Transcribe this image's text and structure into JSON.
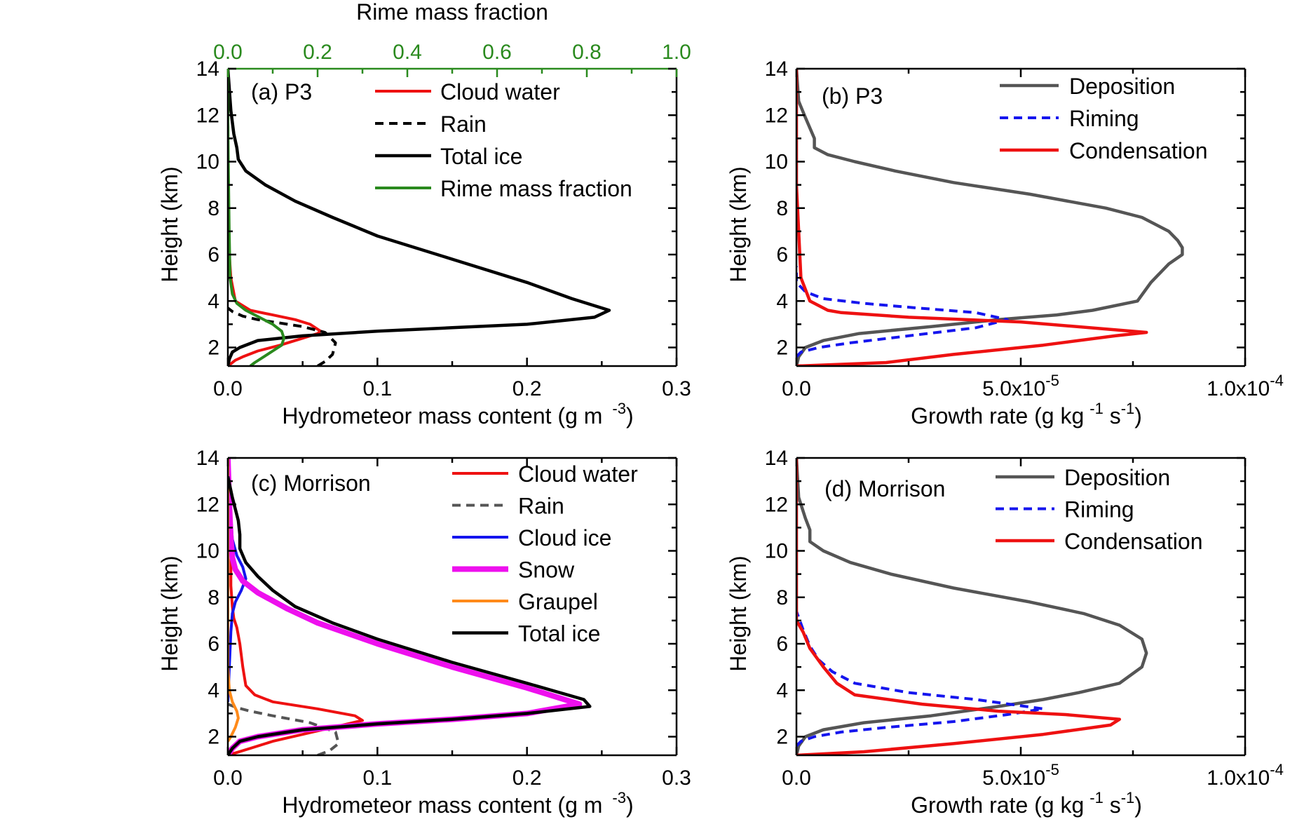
{
  "chart_data": [
    {
      "id": "a",
      "type": "line",
      "panel_label": "(a) P3",
      "xlabel": "Hydrometeor mass content (g m",
      "xlabel_sup": "-3",
      "xlabel_end": ")",
      "ylabel": "Height (km)",
      "xlim": [
        0,
        0.3
      ],
      "ylim": [
        1.2,
        14
      ],
      "xticks": [
        0.0,
        0.1,
        0.2,
        0.3
      ],
      "xtick_labels": [
        "0.0",
        "0.1",
        "0.2",
        "0.3"
      ],
      "yticks": [
        2,
        4,
        6,
        8,
        10,
        12,
        14
      ],
      "ytick_labels": [
        "2",
        "4",
        "6",
        "8",
        "10",
        "12",
        "14"
      ],
      "top_axis": {
        "label": "Rime mass fraction",
        "lim": [
          0,
          1.0
        ],
        "ticks": [
          0.0,
          0.2,
          0.4,
          0.6,
          0.8,
          1.0
        ],
        "tick_labels": [
          "0.0",
          "0.2",
          "0.4",
          "0.6",
          "0.8",
          "1.0"
        ],
        "color": "#2a8a1e"
      },
      "legend_position": "top-right",
      "series": [
        {
          "name": "Cloud water",
          "color": "#ee1111",
          "dash": "",
          "width": 4,
          "x": [
            0.0,
            0.002,
            0.005,
            0.01,
            0.02,
            0.035,
            0.05,
            0.06,
            0.062,
            0.055,
            0.045,
            0.03,
            0.015,
            0.005,
            0.002,
            0.001,
            0.0
          ],
          "y": [
            1.2,
            1.3,
            1.45,
            1.6,
            1.85,
            2.1,
            2.4,
            2.6,
            2.7,
            3.0,
            3.2,
            3.4,
            3.6,
            4.0,
            5.0,
            6.0,
            7.0
          ]
        },
        {
          "name": "Rain",
          "color": "#000000",
          "dash": "12,8",
          "width": 4,
          "x": [
            0.06,
            0.065,
            0.07,
            0.072,
            0.065,
            0.05,
            0.035,
            0.02,
            0.01,
            0.003,
            0.0
          ],
          "y": [
            1.2,
            1.4,
            1.7,
            2.2,
            2.65,
            2.9,
            3.05,
            3.2,
            3.35,
            3.55,
            3.7
          ]
        },
        {
          "name": "Total ice",
          "color": "#000000",
          "dash": "",
          "width": 4.5,
          "x": [
            0.0,
            0.001,
            0.003,
            0.008,
            0.02,
            0.05,
            0.1,
            0.15,
            0.2,
            0.245,
            0.255,
            0.23,
            0.2,
            0.15,
            0.1,
            0.07,
            0.045,
            0.025,
            0.012,
            0.007,
            0.006,
            0.004,
            0.002,
            0.0
          ],
          "y": [
            1.2,
            1.5,
            1.8,
            2.0,
            2.3,
            2.5,
            2.7,
            2.85,
            3.0,
            3.3,
            3.6,
            4.1,
            4.8,
            5.8,
            6.8,
            7.6,
            8.3,
            9.0,
            9.6,
            10.1,
            10.6,
            11.2,
            12.2,
            14.0
          ]
        },
        {
          "name": "Rime mass fraction",
          "color": "#2a8a1e",
          "dash": "",
          "width": 4,
          "axis": "top",
          "x": [
            0.05,
            0.06,
            0.08,
            0.1,
            0.12,
            0.125,
            0.12,
            0.1,
            0.07,
            0.04,
            0.02,
            0.01,
            0.005,
            0.003,
            0.001,
            0.0,
            0.0
          ],
          "y": [
            1.2,
            1.35,
            1.6,
            1.85,
            2.1,
            2.4,
            2.7,
            3.0,
            3.3,
            3.6,
            3.9,
            4.3,
            5.0,
            7.0,
            10.0,
            12.0,
            14.0
          ]
        }
      ]
    },
    {
      "id": "b",
      "type": "line",
      "panel_label": "(b) P3",
      "xlabel": "Growth rate (g kg",
      "xlabel_sup1": "-1",
      "xlabel_mid": " s",
      "xlabel_sup2": "-1",
      "xlabel_end": ")",
      "ylabel": "Height (km)",
      "xlim": [
        0,
        0.0001
      ],
      "ylim": [
        1.2,
        14
      ],
      "xticks": [
        0.0,
        5e-05,
        0.0001
      ],
      "xtick_labels": [
        "0.0",
        "5.0x10",
        "1.0x10"
      ],
      "xtick_sups": [
        "",
        "-5",
        "-4"
      ],
      "yticks": [
        2,
        4,
        6,
        8,
        10,
        12,
        14
      ],
      "ytick_labels": [
        "2",
        "4",
        "6",
        "8",
        "10",
        "12",
        "14"
      ],
      "legend_position": "top-right",
      "series": [
        {
          "name": "Deposition",
          "color": "#555555",
          "dash": "",
          "width": 4.5,
          "x": [
            0.0,
            5e-07,
            2e-06,
            6e-06,
            1.4e-05,
            3e-05,
            4.5e-05,
            5.8e-05,
            6.6e-05,
            7.6e-05,
            7.9e-05,
            8.3e-05,
            8.6e-05,
            8.6e-05,
            8.5e-05,
            8.3e-05,
            7.7e-05,
            6.9e-05,
            5.2e-05,
            3.5e-05,
            2.2e-05,
            1.3e-05,
            7e-06,
            4e-06,
            4e-06,
            2e-06,
            5e-07,
            0.0
          ],
          "y": [
            1.2,
            1.6,
            2.0,
            2.3,
            2.6,
            2.9,
            3.2,
            3.4,
            3.6,
            4.0,
            4.8,
            5.6,
            6.0,
            6.3,
            6.6,
            7.0,
            7.6,
            8.0,
            8.6,
            9.1,
            9.6,
            10.0,
            10.3,
            10.6,
            11.0,
            11.9,
            12.6,
            14.0
          ]
        },
        {
          "name": "Riming",
          "color": "#1515ee",
          "dash": "12,8",
          "width": 4,
          "x": [
            0.0,
            1e-06,
            5e-06,
            1.2e-05,
            2.5e-05,
            4e-05,
            4.7e-05,
            4e-05,
            2.7e-05,
            1.5e-05,
            6e-06,
            2e-06,
            0.0,
            0.0
          ],
          "y": [
            1.6,
            1.8,
            2.0,
            2.2,
            2.5,
            2.85,
            3.2,
            3.5,
            3.7,
            3.9,
            4.1,
            4.4,
            4.8,
            5.5
          ]
        },
        {
          "name": "Condensation",
          "color": "#ee1111",
          "dash": "",
          "width": 4.5,
          "x": [
            0.0,
            2e-05,
            3.5e-05,
            5.5e-05,
            7.1e-05,
            7.8e-05,
            5e-05,
            2.5e-05,
            1e-05,
            7e-06,
            3e-06,
            1e-06,
            5e-07,
            0.0,
            0.0,
            0.0
          ],
          "y": [
            1.2,
            1.35,
            1.7,
            2.1,
            2.5,
            2.65,
            3.1,
            3.3,
            3.5,
            3.6,
            4.0,
            5.0,
            7.0,
            9.0,
            12.0,
            14.0
          ]
        }
      ]
    },
    {
      "id": "c",
      "type": "line",
      "panel_label": "(c) Morrison",
      "xlabel": "Hydrometeor mass content (g m",
      "xlabel_sup": "-3",
      "xlabel_end": ")",
      "ylabel": "Height (km)",
      "xlim": [
        0,
        0.3
      ],
      "ylim": [
        1.2,
        14
      ],
      "xticks": [
        0.0,
        0.1,
        0.2,
        0.3
      ],
      "xtick_labels": [
        "0.0",
        "0.1",
        "0.2",
        "0.3"
      ],
      "yticks": [
        2,
        4,
        6,
        8,
        10,
        12,
        14
      ],
      "ytick_labels": [
        "2",
        "4",
        "6",
        "8",
        "10",
        "12",
        "14"
      ],
      "legend_position": "top-right",
      "series": [
        {
          "name": "Cloud water",
          "color": "#ee1111",
          "dash": "",
          "width": 4,
          "x": [
            0.0,
            0.005,
            0.015,
            0.03,
            0.05,
            0.07,
            0.09,
            0.085,
            0.06,
            0.03,
            0.018,
            0.012,
            0.01,
            0.008,
            0.006,
            0.004,
            0.003,
            0.002,
            0.002,
            0.001,
            0.0
          ],
          "y": [
            1.2,
            1.3,
            1.5,
            1.8,
            2.1,
            2.4,
            2.7,
            2.9,
            3.2,
            3.5,
            3.8,
            4.2,
            5.0,
            6.0,
            6.7,
            7.1,
            7.6,
            8.5,
            10.0,
            12.0,
            14.0
          ]
        },
        {
          "name": "Rain",
          "color": "#555555",
          "dash": "12,8",
          "width": 4,
          "x": [
            0.06,
            0.068,
            0.074,
            0.072,
            0.055,
            0.03,
            0.015,
            0.006,
            0.0
          ],
          "y": [
            1.2,
            1.4,
            1.7,
            2.2,
            2.6,
            2.9,
            3.1,
            3.25,
            3.4
          ]
        },
        {
          "name": "Cloud ice",
          "color": "#1515ee",
          "dash": "",
          "width": 4,
          "x": [
            0.0,
            0.001,
            0.002,
            0.003,
            0.005,
            0.009,
            0.012,
            0.01,
            0.006,
            0.003,
            0.002,
            0.001,
            0.0
          ],
          "y": [
            3.5,
            5.0,
            6.5,
            7.3,
            7.8,
            8.3,
            8.8,
            9.3,
            9.8,
            10.5,
            11.5,
            12.5,
            14.0
          ]
        },
        {
          "name": "Snow",
          "color": "#ee10ee",
          "dash": "",
          "width": 8,
          "x": [
            0.0,
            0.003,
            0.008,
            0.02,
            0.05,
            0.1,
            0.15,
            0.2,
            0.235,
            0.2,
            0.15,
            0.1,
            0.06,
            0.04,
            0.02,
            0.01,
            0.005,
            0.003,
            0.002,
            0.001,
            0.0
          ],
          "y": [
            1.2,
            1.5,
            1.8,
            2.0,
            2.3,
            2.55,
            2.75,
            3.0,
            3.4,
            4.1,
            5.0,
            6.0,
            6.9,
            7.5,
            8.2,
            8.7,
            9.2,
            9.7,
            10.5,
            12.0,
            14.0
          ]
        },
        {
          "name": "Graupel",
          "color": "#ff8a1a",
          "dash": "",
          "width": 4,
          "x": [
            0.0,
            0.002,
            0.005,
            0.007,
            0.006,
            0.003,
            0.001,
            0.0,
            0.0
          ],
          "y": [
            1.8,
            2.0,
            2.4,
            2.8,
            3.1,
            3.5,
            4.0,
            5.0,
            14.0
          ]
        },
        {
          "name": "Total ice",
          "color": "#000000",
          "dash": "",
          "width": 4.5,
          "x": [
            0.0,
            0.003,
            0.008,
            0.02,
            0.05,
            0.1,
            0.15,
            0.2,
            0.242,
            0.238,
            0.2,
            0.15,
            0.1,
            0.07,
            0.045,
            0.03,
            0.02,
            0.012,
            0.008,
            0.008,
            0.007,
            0.003,
            0.0
          ],
          "y": [
            1.2,
            1.5,
            1.8,
            2.0,
            2.3,
            2.55,
            2.75,
            3.0,
            3.3,
            3.6,
            4.3,
            5.2,
            6.2,
            6.9,
            7.6,
            8.3,
            8.9,
            9.5,
            10.1,
            10.7,
            11.3,
            12.3,
            13.2
          ]
        }
      ]
    },
    {
      "id": "d",
      "type": "line",
      "panel_label": "(d) Morrison",
      "xlabel": "Growth rate (g kg",
      "xlabel_sup1": "-1",
      "xlabel_mid": " s",
      "xlabel_sup2": "-1",
      "xlabel_end": ")",
      "ylabel": "Height (km)",
      "xlim": [
        0,
        0.0001
      ],
      "ylim": [
        1.2,
        14
      ],
      "xticks": [
        0.0,
        5e-05,
        0.0001
      ],
      "xtick_labels": [
        "0.0",
        "5.0x10",
        "1.0x10"
      ],
      "xtick_sups": [
        "",
        "-5",
        "-4"
      ],
      "yticks": [
        2,
        4,
        6,
        8,
        10,
        12,
        14
      ],
      "ytick_labels": [
        "2",
        "4",
        "6",
        "8",
        "10",
        "12",
        "14"
      ],
      "legend_position": "top-right",
      "series": [
        {
          "name": "Deposition",
          "color": "#555555",
          "dash": "",
          "width": 4.5,
          "x": [
            0.0,
            5e-07,
            2e-06,
            6e-06,
            1.5e-05,
            3e-05,
            4.5e-05,
            5.5e-05,
            6.3e-05,
            7.2e-05,
            7.7e-05,
            7.8e-05,
            7.7e-05,
            7.2e-05,
            6.4e-05,
            5.2e-05,
            3.5e-05,
            2.1e-05,
            1.2e-05,
            6e-06,
            3e-06,
            3e-06,
            2e-06,
            5e-07,
            0.0
          ],
          "y": [
            1.2,
            1.6,
            2.0,
            2.3,
            2.6,
            2.9,
            3.3,
            3.6,
            3.9,
            4.3,
            5.0,
            5.6,
            6.2,
            6.8,
            7.3,
            7.8,
            8.4,
            9.0,
            9.5,
            10.0,
            10.4,
            10.9,
            11.4,
            12.3,
            14.0
          ]
        },
        {
          "name": "Riming",
          "color": "#1515ee",
          "dash": "12,8",
          "width": 4,
          "x": [
            0.0,
            1e-06,
            4e-06,
            1e-05,
            2e-05,
            3.5e-05,
            4.7e-05,
            5.5e-05,
            4e-05,
            2.5e-05,
            1.3e-05,
            8e-06,
            5e-06,
            3e-06,
            1.5e-06,
            0.0
          ],
          "y": [
            1.6,
            1.8,
            2.0,
            2.2,
            2.4,
            2.65,
            2.95,
            3.2,
            3.6,
            3.9,
            4.3,
            4.8,
            5.3,
            5.9,
            6.6,
            7.4
          ]
        },
        {
          "name": "Condensation",
          "color": "#ee1111",
          "dash": "",
          "width": 4.5,
          "x": [
            0.0,
            1.5e-05,
            3.5e-05,
            5.5e-05,
            7e-05,
            7.2e-05,
            6e-05,
            4.5e-05,
            2.8e-05,
            1.3e-05,
            9e-06,
            6e-06,
            3e-06,
            1.5e-06,
            0.0,
            0.0,
            0.0
          ],
          "y": [
            1.2,
            1.35,
            1.7,
            2.1,
            2.5,
            2.75,
            2.95,
            3.1,
            3.4,
            3.8,
            4.3,
            5.0,
            5.8,
            6.5,
            7.0,
            10.0,
            14.0
          ]
        }
      ]
    }
  ]
}
